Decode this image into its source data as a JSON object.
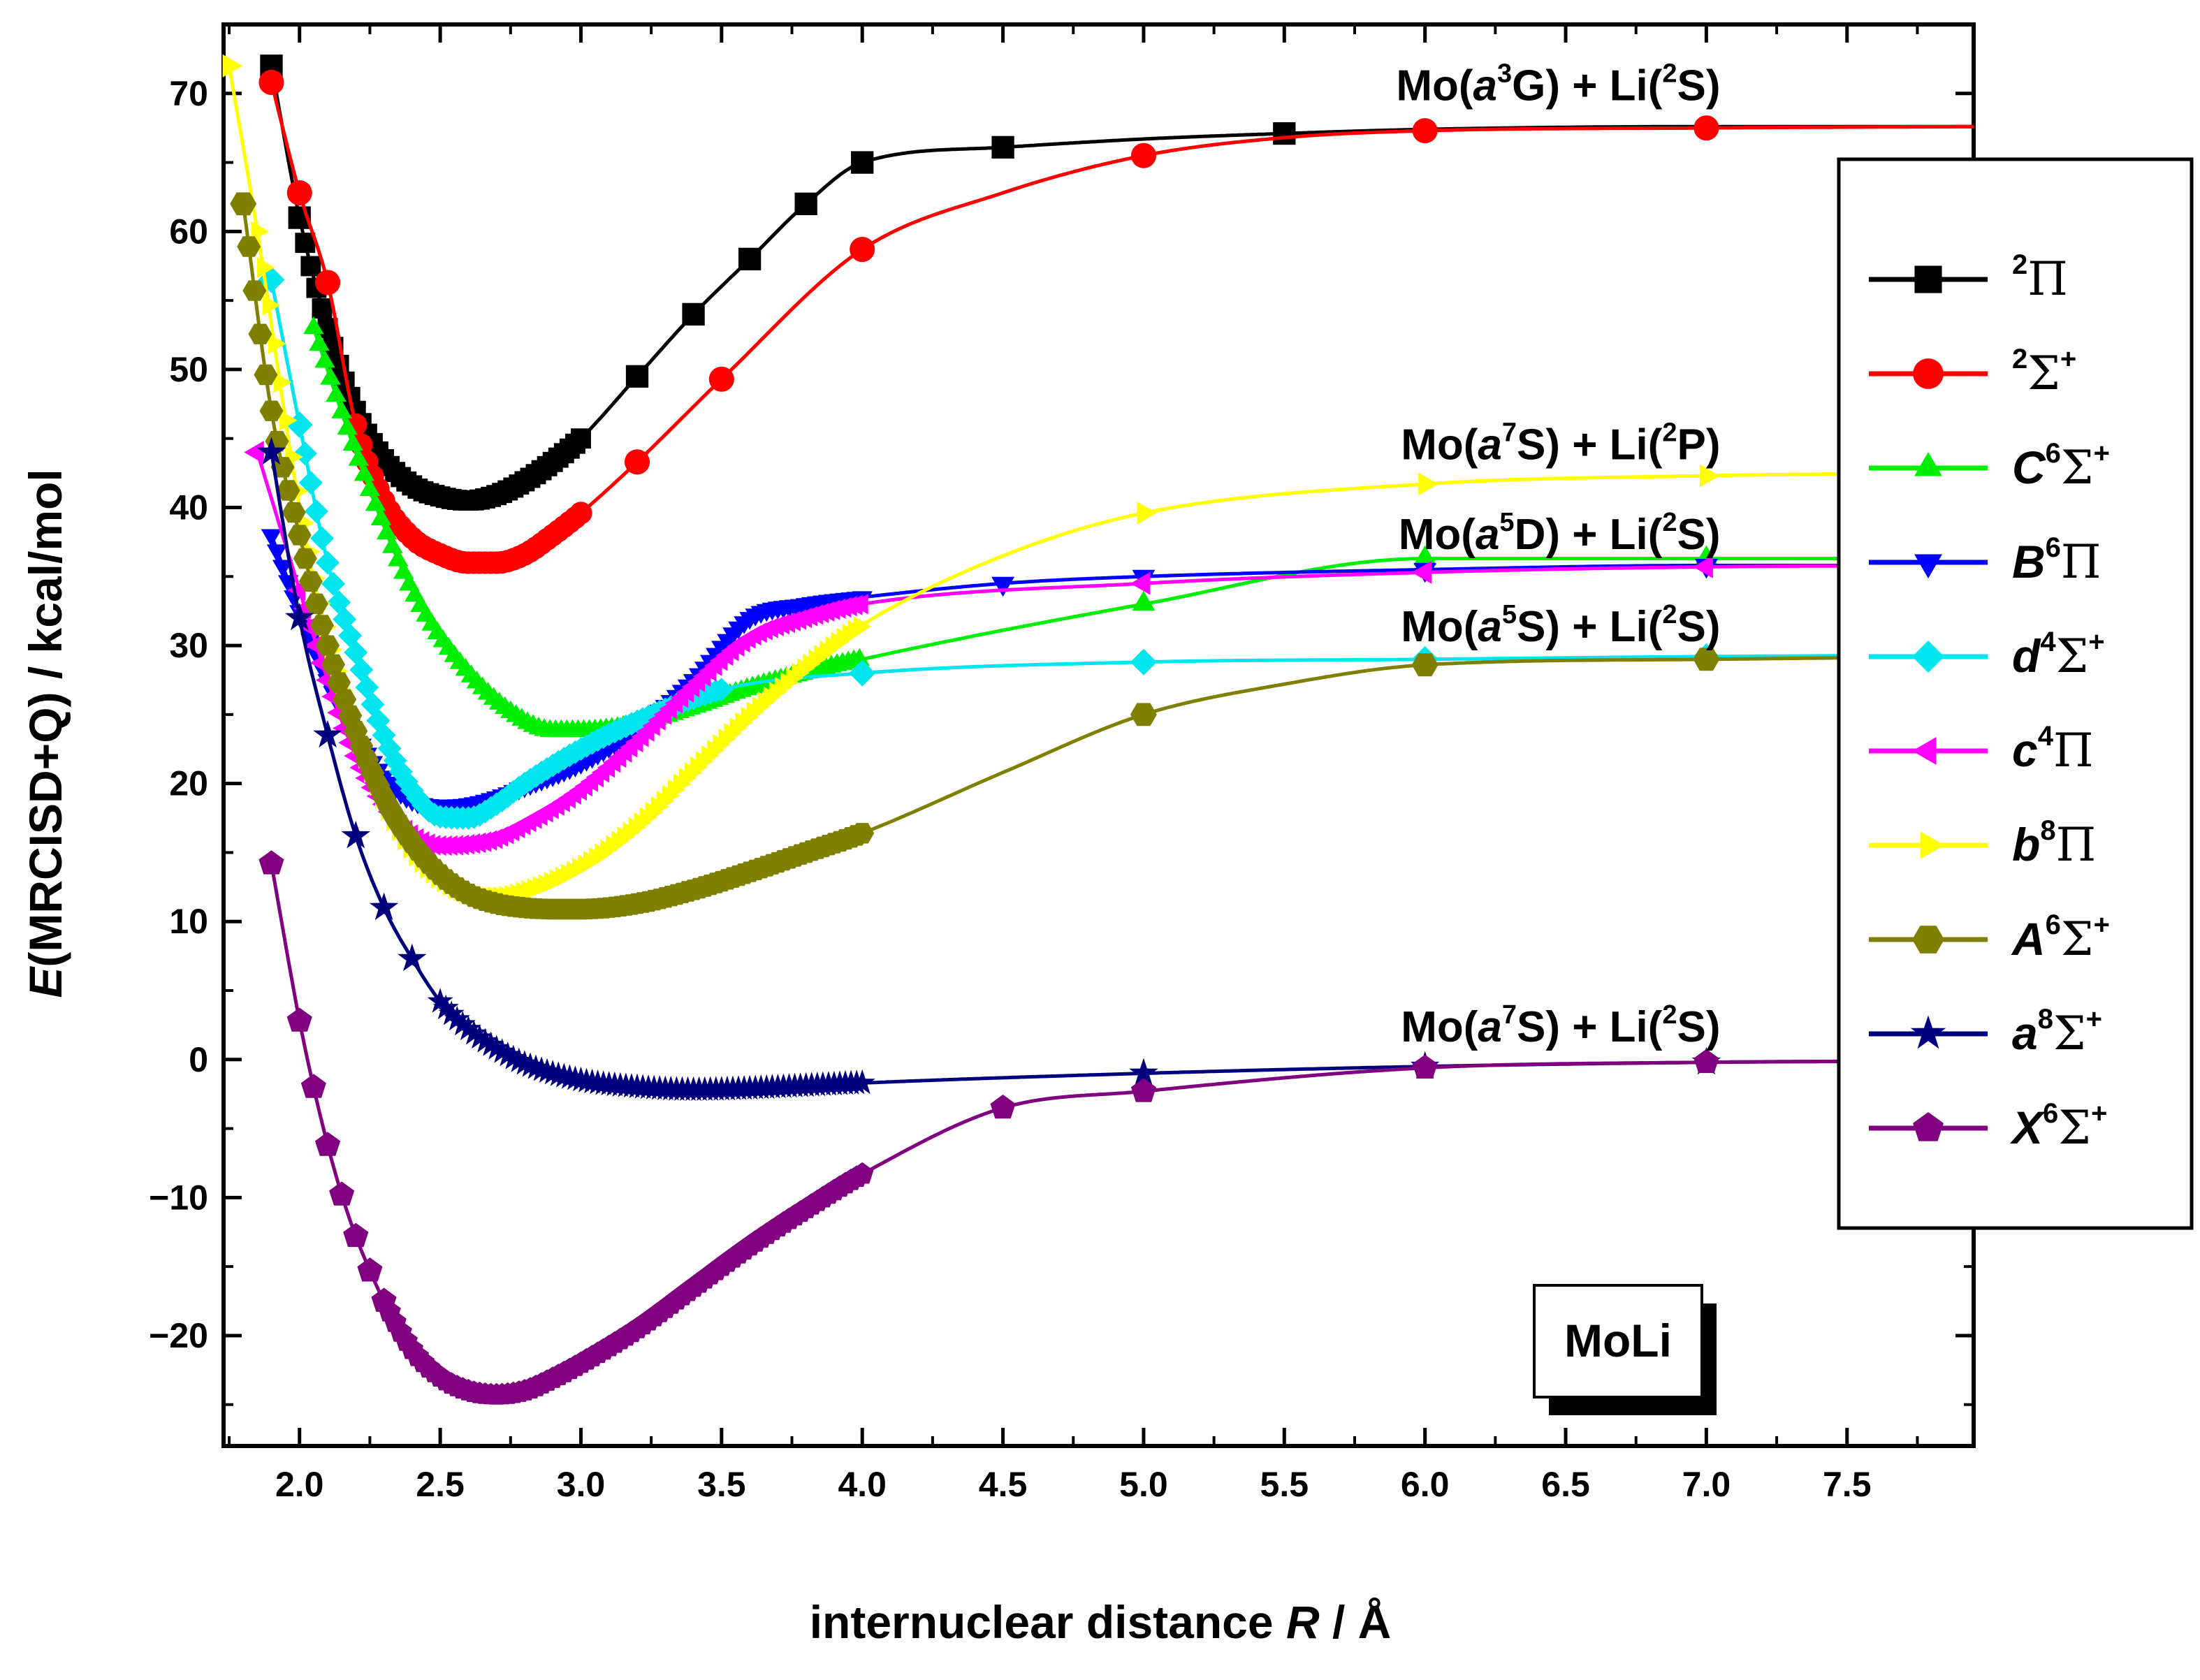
{
  "chart_data": {
    "type": "line",
    "title": "",
    "molecule_label": "MoLi",
    "xlabel": {
      "prefix": "internuclear distance ",
      "var": "R",
      "suffix": " / Å"
    },
    "ylabel": {
      "var": "E",
      "rest": "(MRCISD+Q) / kcal/mol"
    },
    "xlim": [
      1.73,
      7.95
    ],
    "ylim": [
      -28,
      75
    ],
    "x_ticks": [
      "2.0",
      "2.5",
      "3.0",
      "3.5",
      "4.0",
      "4.5",
      "5.0",
      "5.5",
      "6.0",
      "6.5",
      "7.0",
      "7.5"
    ],
    "y_ticks": [
      "70",
      "60",
      "50",
      "40",
      "30",
      "20",
      "10",
      "0",
      "−10",
      "−20"
    ],
    "legend_position": "right",
    "dissociation_labels": [
      {
        "pre": "Mo(",
        "a": "a",
        "sup1": "3",
        "mid": "G) + Li(",
        "sup2": "2",
        "post": "S)",
        "x": 7.05,
        "y": 69.5
      },
      {
        "pre": "Mo(",
        "a": "a",
        "sup1": "7",
        "mid": "S) + Li(",
        "sup2": "2",
        "post": "P)",
        "x": 7.05,
        "y": 43.5
      },
      {
        "pre": "Mo(",
        "a": "a",
        "sup1": "5",
        "mid": "D) + Li(",
        "sup2": "2",
        "post": "S)",
        "x": 7.05,
        "y": 37.0
      },
      {
        "pre": "Mo(",
        "a": "a",
        "sup1": "5",
        "mid": "S) + Li(",
        "sup2": "2",
        "post": "S)",
        "x": 7.05,
        "y": 30.3
      },
      {
        "pre": "Mo(",
        "a": "a",
        "sup1": "7",
        "mid": "S) + Li(",
        "sup2": "2",
        "post": "S)",
        "x": 7.05,
        "y": 1.3
      }
    ],
    "series": [
      {
        "name": "2Π",
        "letter": "",
        "mult": "2",
        "sym": "Π",
        "charge": "",
        "color": "#000000",
        "marker": "square",
        "x": [
          1.9,
          2.0,
          2.1,
          2.2,
          2.3,
          2.4,
          2.5,
          2.6,
          2.7,
          2.8,
          2.9,
          3.0,
          3.2,
          3.4,
          3.6,
          3.8,
          4.0,
          4.5,
          5.0,
          5.5,
          6.0,
          7.0,
          7.95
        ],
        "y": [
          72.0,
          61.0,
          53.0,
          47.0,
          43.5,
          41.6,
          40.8,
          40.5,
          40.9,
          41.9,
          43.3,
          45.0,
          49.5,
          54.0,
          58.0,
          62.0,
          65.0,
          66.1,
          66.7,
          67.1,
          67.4,
          67.6,
          67.6
        ],
        "markers_x": [
          1.9,
          2.0,
          3.2,
          3.4,
          3.6,
          3.8,
          4.0,
          4.5,
          5.5
        ],
        "dense_range": [
          2.0,
          3.0
        ]
      },
      {
        "name": "2Σ+",
        "letter": "",
        "mult": "2",
        "sym": "Σ",
        "charge": "+",
        "color": "#ff0000",
        "marker": "circle",
        "x": [
          1.9,
          2.0,
          2.1,
          2.2,
          2.3,
          2.4,
          2.5,
          2.6,
          2.7,
          2.8,
          2.9,
          3.0,
          3.2,
          3.5,
          4.0,
          4.5,
          5.0,
          5.5,
          6.0,
          7.0,
          7.95
        ],
        "y": [
          70.8,
          62.8,
          56.3,
          46.0,
          40.5,
          37.8,
          36.6,
          36.0,
          36.0,
          36.6,
          38.0,
          39.6,
          43.3,
          49.3,
          58.7,
          62.8,
          65.5,
          66.8,
          67.3,
          67.5,
          67.6
        ],
        "markers_x": [
          1.9,
          2.0,
          2.1,
          3.2,
          3.5,
          4.0,
          5.0,
          6.0,
          7.0
        ],
        "dense_range": [
          2.2,
          3.0
        ]
      },
      {
        "name": "C6Σ+",
        "letter": "C",
        "mult": "6",
        "sym": "Σ",
        "charge": "+",
        "color": "#00ee00",
        "marker": "triangle-up",
        "x": [
          2.05,
          2.2,
          2.4,
          2.6,
          2.8,
          2.9,
          3.0,
          3.2,
          3.4,
          3.6,
          3.8,
          4.0,
          5.0,
          6.0,
          7.0,
          7.95
        ],
        "y": [
          53.0,
          44.0,
          34.0,
          28.0,
          24.5,
          23.8,
          23.8,
          24.3,
          25.5,
          26.9,
          28.0,
          29.0,
          33.0,
          36.3,
          36.3,
          36.3
        ],
        "markers_x": [
          5.0,
          6.0,
          7.0
        ],
        "dense_range": [
          2.05,
          4.0
        ]
      },
      {
        "name": "B6Π",
        "letter": "B",
        "mult": "6",
        "sym": "Π",
        "charge": "",
        "color": "#0000ff",
        "marker": "triangle-down",
        "x": [
          1.9,
          2.0,
          2.1,
          2.2,
          2.3,
          2.4,
          2.5,
          2.6,
          2.7,
          2.8,
          3.0,
          3.2,
          3.4,
          3.6,
          3.8,
          4.0,
          4.5,
          5.0,
          6.0,
          7.0,
          7.95
        ],
        "y": [
          38.0,
          32.5,
          27.5,
          23.5,
          20.5,
          18.8,
          18.4,
          18.5,
          19.0,
          19.8,
          21.5,
          24.0,
          27.5,
          32.0,
          33.0,
          33.5,
          34.5,
          35.0,
          35.5,
          35.8,
          35.8
        ],
        "markers_x": [
          4.5,
          5.0,
          6.0,
          7.0
        ],
        "dense_range": [
          1.9,
          4.0
        ]
      },
      {
        "name": "d4Σ+",
        "letter": "d",
        "mult": "4",
        "sym": "Σ",
        "charge": "+",
        "color": "#00e5ee",
        "marker": "diamond",
        "x": [
          1.9,
          2.0,
          2.1,
          2.2,
          2.3,
          2.4,
          2.5,
          2.6,
          2.7,
          2.8,
          3.0,
          3.2,
          3.5,
          4.0,
          5.0,
          6.0,
          7.0,
          7.95
        ],
        "y": [
          56.5,
          46.0,
          36.0,
          29.5,
          23.5,
          19.5,
          17.6,
          17.5,
          18.5,
          20.0,
          22.5,
          24.5,
          26.8,
          28.0,
          28.8,
          29.0,
          29.2,
          29.3
        ],
        "markers_x": [
          1.9,
          2.0,
          4.0,
          5.0,
          6.0,
          7.0
        ],
        "dense_range": [
          2.0,
          3.5
        ]
      },
      {
        "name": "c4Π",
        "letter": "c",
        "mult": "4",
        "sym": "Π",
        "charge": "",
        "color": "#ff00ff",
        "marker": "triangle-left",
        "x": [
          1.85,
          2.0,
          2.1,
          2.2,
          2.3,
          2.4,
          2.5,
          2.6,
          2.7,
          2.8,
          3.0,
          3.2,
          3.4,
          3.6,
          3.8,
          4.0,
          5.0,
          6.0,
          7.0,
          7.95
        ],
        "y": [
          44.0,
          34.0,
          27.5,
          22.0,
          18.5,
          16.3,
          15.5,
          15.6,
          16.0,
          17.0,
          19.5,
          23.0,
          27.0,
          30.5,
          32.0,
          33.0,
          34.5,
          35.3,
          35.7,
          35.8
        ],
        "markers_x": [
          1.85,
          5.0,
          6.0,
          7.0
        ],
        "dense_range": [
          2.0,
          4.0
        ]
      },
      {
        "name": "b8Π",
        "letter": "b",
        "mult": "8",
        "sym": "Π",
        "charge": "",
        "color": "#ffff00",
        "marker": "triangle-right",
        "x": [
          1.75,
          1.85,
          2.0,
          2.1,
          2.2,
          2.3,
          2.4,
          2.5,
          2.6,
          2.7,
          2.8,
          3.0,
          3.2,
          3.4,
          3.6,
          3.8,
          4.0,
          4.5,
          5.0,
          6.0,
          7.0,
          7.95
        ],
        "y": [
          72.0,
          60.0,
          40.0,
          30.5,
          23.5,
          18.5,
          15.0,
          13.0,
          12.0,
          11.8,
          12.2,
          14.0,
          17.0,
          21.0,
          25.0,
          28.5,
          31.5,
          36.5,
          39.6,
          41.7,
          42.3,
          42.5
        ],
        "markers_x": [
          1.75,
          5.0,
          6.0,
          7.0
        ],
        "dense_range": [
          1.85,
          4.0
        ]
      },
      {
        "name": "A6Σ+",
        "letter": "A",
        "mult": "6",
        "sym": "Σ",
        "charge": "+",
        "color": "#808000",
        "marker": "hexagon",
        "x": [
          1.8,
          1.9,
          2.0,
          2.1,
          2.2,
          2.3,
          2.4,
          2.5,
          2.6,
          2.7,
          2.8,
          2.9,
          3.0,
          3.2,
          3.4,
          3.6,
          3.8,
          4.0,
          4.5,
          5.0,
          5.5,
          6.0,
          7.0,
          7.95
        ],
        "y": [
          62.0,
          47.0,
          38.0,
          30.0,
          23.8,
          19.0,
          15.7,
          13.4,
          12.0,
          11.3,
          11.0,
          10.9,
          10.9,
          11.3,
          12.3,
          13.6,
          15.0,
          16.4,
          20.8,
          25.0,
          27.2,
          28.6,
          29.0,
          29.2
        ],
        "markers_x": [
          1.8,
          5.0,
          6.0,
          7.0
        ],
        "dense_range": [
          1.8,
          4.0
        ]
      },
      {
        "name": "a8Σ+",
        "letter": "a",
        "mult": "8",
        "sym": "Σ",
        "charge": "+",
        "color": "#00007f",
        "marker": "star",
        "x": [
          1.9,
          2.0,
          2.1,
          2.2,
          2.3,
          2.4,
          2.5,
          2.6,
          2.7,
          2.8,
          3.0,
          3.2,
          3.4,
          3.6,
          3.8,
          4.0,
          5.0,
          6.0,
          7.0,
          7.95
        ],
        "y": [
          44.0,
          32.0,
          23.5,
          16.2,
          11.0,
          7.3,
          4.2,
          2.2,
          0.8,
          -0.3,
          -1.5,
          -2.0,
          -2.2,
          -2.1,
          -1.9,
          -1.7,
          -1.0,
          -0.5,
          -0.2,
          -0.1
        ],
        "markers_x": [
          1.9,
          2.0,
          2.1,
          2.2,
          2.3,
          2.4,
          5.0,
          6.0,
          7.0
        ],
        "dense_range": [
          2.5,
          4.0
        ]
      },
      {
        "name": "X6Σ+",
        "letter": "X",
        "mult": "6",
        "sym": "Σ",
        "charge": "+",
        "color": "#800080",
        "marker": "pentagon",
        "x": [
          1.9,
          2.0,
          2.05,
          2.1,
          2.15,
          2.2,
          2.25,
          2.3,
          2.4,
          2.5,
          2.6,
          2.7,
          2.8,
          2.9,
          3.0,
          3.2,
          3.4,
          3.6,
          3.8,
          4.0,
          4.5,
          5.0,
          6.0,
          7.0,
          7.95
        ],
        "y": [
          14.2,
          2.8,
          -2.0,
          -6.2,
          -9.8,
          -12.8,
          -15.3,
          -17.5,
          -21.0,
          -23.0,
          -24.0,
          -24.3,
          -24.0,
          -23.1,
          -22.0,
          -19.5,
          -16.5,
          -13.5,
          -10.8,
          -8.3,
          -3.5,
          -2.3,
          -0.6,
          -0.2,
          -0.1
        ],
        "markers_x": [
          1.9,
          2.0,
          2.05,
          2.1,
          2.15,
          2.2,
          2.25,
          2.3,
          4.5,
          5.0,
          6.0,
          7.0
        ],
        "dense_range": [
          2.3,
          4.0
        ]
      }
    ]
  }
}
